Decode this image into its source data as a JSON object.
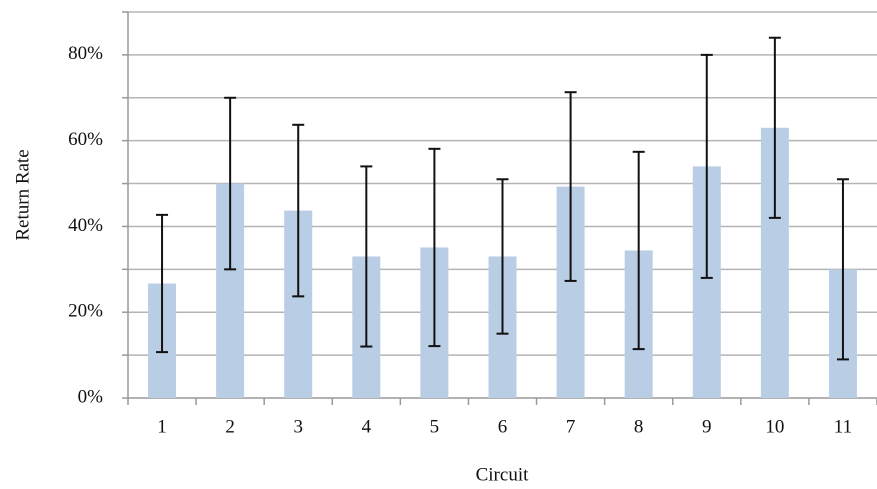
{
  "chart_data": {
    "type": "bar",
    "y_label": "Return Rate",
    "x_label": "Circuit",
    "categories": [
      "1",
      "2",
      "3",
      "4",
      "5",
      "6",
      "7",
      "8",
      "9",
      "10",
      "11"
    ],
    "values": [
      26.7,
      50,
      43.7,
      33,
      35.1,
      33,
      49.3,
      34.4,
      54,
      63,
      30
    ],
    "errors": [
      16,
      20,
      20,
      21,
      23,
      18,
      22,
      23,
      26,
      21,
      21
    ],
    "color": "#b9cde5",
    "ylim": [
      0,
      90
    ],
    "yticks": [
      {
        "value": 0,
        "label": "0%"
      },
      {
        "value": 20,
        "label": "20%"
      },
      {
        "value": 40,
        "label": "40%"
      },
      {
        "value": 60,
        "label": "60%"
      },
      {
        "value": 80,
        "label": "80%"
      }
    ],
    "minor_yticks": [
      10,
      30,
      50,
      70,
      90
    ],
    "grid": true
  }
}
